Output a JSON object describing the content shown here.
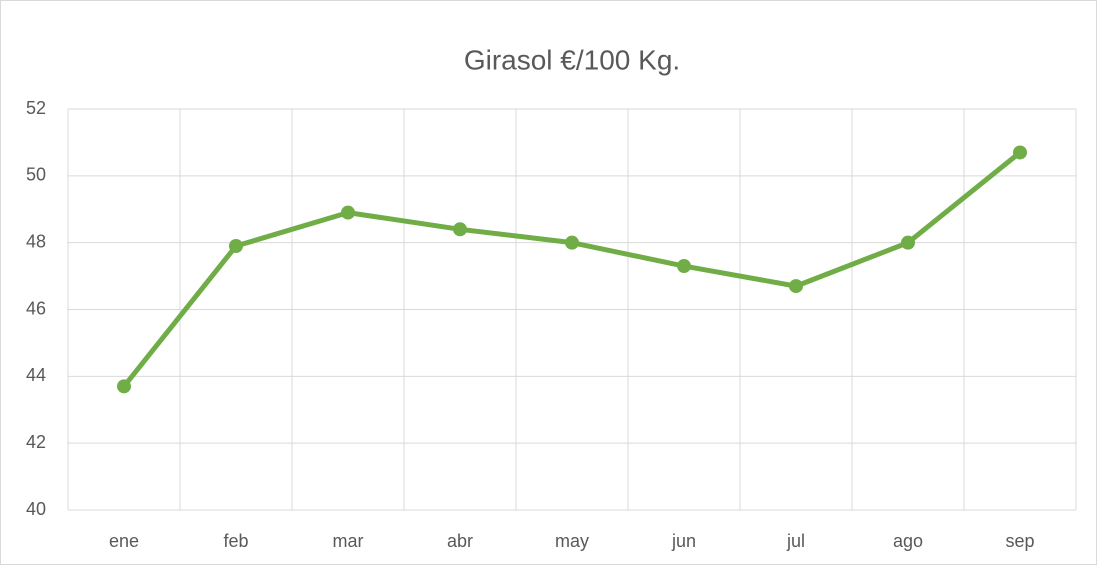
{
  "chart_data": {
    "type": "line",
    "title": "Girasol €/100 Kg.",
    "categories": [
      "ene",
      "feb",
      "mar",
      "abr",
      "may",
      "jun",
      "jul",
      "ago",
      "sep"
    ],
    "series": [
      {
        "name": "Girasol",
        "color": "#70ad47",
        "values": [
          43.7,
          47.9,
          48.9,
          48.4,
          48.0,
          47.3,
          46.7,
          48.0,
          50.7
        ]
      }
    ],
    "ylim": [
      40,
      52
    ],
    "yticks": [
      40,
      42,
      44,
      46,
      48,
      50,
      52
    ],
    "grid": true
  }
}
